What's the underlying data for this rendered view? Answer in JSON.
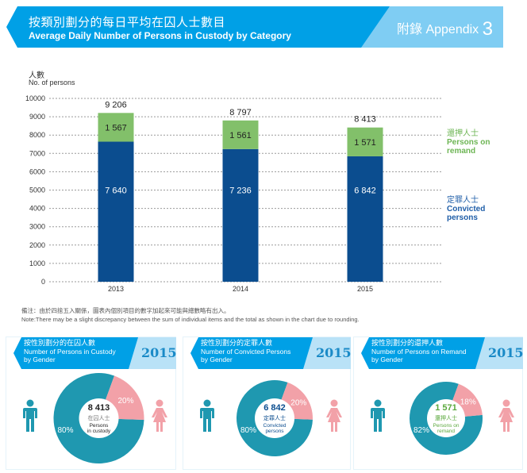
{
  "header": {
    "title_zh": "按類別劃分的每日平均在囚人士數目",
    "title_en": "Average Daily Number of Persons in Custody by Category",
    "appendix_label": "附錄 Appendix",
    "appendix_number": "3"
  },
  "colors": {
    "banner_blue": "#00a0e6",
    "banner_light": "#7fcdf3",
    "convicted": "#0b4d8f",
    "remand": "#82c06a",
    "male": "#1f98b0",
    "female": "#f2a1a8"
  },
  "chart_data": {
    "type": "bar",
    "stacked": true,
    "title": "Average Daily Number of Persons in Custody by Category",
    "ylabel_zh": "人數",
    "ylabel": "No. of persons",
    "xlabel": "",
    "categories": [
      "2013",
      "2014",
      "2015"
    ],
    "ylim": [
      0,
      10000
    ],
    "yticks": [
      "0",
      "1000",
      "2000",
      "3000",
      "4000",
      "5000",
      "6000",
      "7000",
      "8000",
      "9000",
      "10000"
    ],
    "grid": true,
    "series": [
      {
        "name": "Convicted persons",
        "name_zh": "定罪人士",
        "values": [
          7640,
          7236,
          6842
        ],
        "labels": [
          "7 640",
          "7 236",
          "6 842"
        ]
      },
      {
        "name": "Persons on remand",
        "name_zh": "還押人士",
        "values": [
          1567,
          1561,
          1571
        ],
        "labels": [
          "1 567",
          "1 561",
          "1 571"
        ]
      }
    ],
    "totals": [
      9206,
      8797,
      8413
    ],
    "total_labels": [
      "9 206",
      "8 797",
      "8 413"
    ],
    "legend_placement": "right"
  },
  "legend": {
    "remand_zh": "還押人士",
    "remand_en_1": "Persons on",
    "remand_en_2": "remand",
    "convicted_zh": "定罪人士",
    "convicted_en_1": "Convicted",
    "convicted_en_2": "persons"
  },
  "note": {
    "zh": "備注：由於四捨五入關係，圖表內個別項目的數字加起來可能與總數略有出入。",
    "en": "Note:There may be a slight discrepancy between the sum of individual items and the total as shown in the chart due to rounding."
  },
  "gender_panels": [
    {
      "title_zh": "按性別劃分的在囚人數",
      "title_en_1": "Number of Persons in Custody",
      "title_en_2": "by Gender",
      "year": "2015",
      "total": "8 413",
      "center_zh": "在囚人士",
      "center_en_1": "Persons",
      "center_en_2": "in custody",
      "center_color": "#222222",
      "male_pct": 80,
      "female_pct": 20,
      "male_label": "80%",
      "female_label": "20%"
    },
    {
      "title_zh": "按性別劃分的定罪人數",
      "title_en_1": "Number of Convicted Persons",
      "title_en_2": "by Gender",
      "year": "2015",
      "total": "6 842",
      "center_zh": "定罪人士",
      "center_en_1": "Convicted",
      "center_en_2": "persons",
      "center_color": "#0b4d8f",
      "male_pct": 80,
      "female_pct": 20,
      "male_label": "80%",
      "female_label": "20%"
    },
    {
      "title_zh": "按性別劃分的還押人數",
      "title_en_1": "Number of Persons on Remand",
      "title_en_2": "by Gender",
      "year": "2015",
      "total": "1 571",
      "center_zh": "還押人士",
      "center_en_1": "Persons on",
      "center_en_2": "remand",
      "center_color": "#5aa83c",
      "male_pct": 82,
      "female_pct": 18,
      "male_label": "82%",
      "female_label": "18%"
    }
  ]
}
